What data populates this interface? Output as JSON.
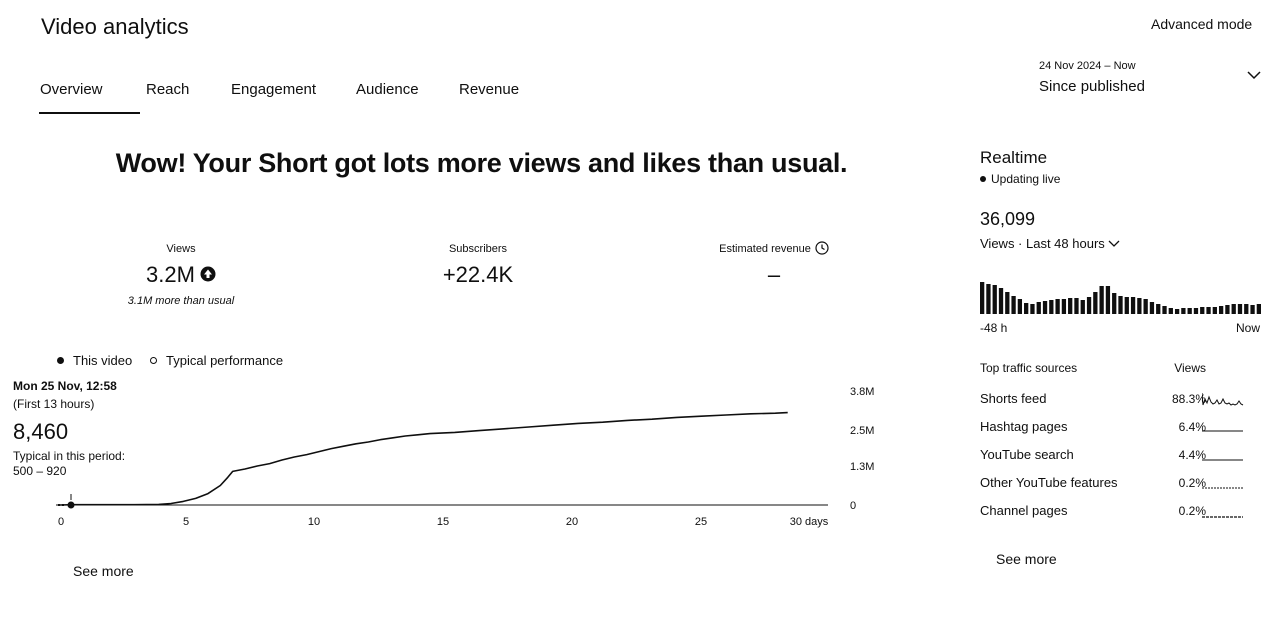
{
  "header": {
    "title": "Video analytics",
    "advanced_mode": "Advanced mode"
  },
  "tabs": [
    {
      "label": "Overview",
      "active": true
    },
    {
      "label": "Reach",
      "active": false
    },
    {
      "label": "Engagement",
      "active": false
    },
    {
      "label": "Audience",
      "active": false
    },
    {
      "label": "Revenue",
      "active": false
    }
  ],
  "date_range": {
    "range": "24 Nov 2024 – Now",
    "period": "Since published"
  },
  "headline": "Wow! Your Short got lots more views and likes than usual.",
  "metrics": {
    "views": {
      "label": "Views",
      "value": "3.2M",
      "sub": "3.1M more than usual"
    },
    "subscribers": {
      "label": "Subscribers",
      "value": "+22.4K"
    },
    "revenue": {
      "label": "Estimated revenue",
      "value": "–"
    }
  },
  "legend": {
    "this_video": "This video",
    "typical": "Typical performance"
  },
  "tooltip": {
    "date": "Mon 25 Nov, 12:58",
    "note": "(First 13 hours)",
    "value": "8,460",
    "typical_label": "Typical in this period:",
    "typical_range": "500 – 920"
  },
  "chart_data": {
    "type": "line",
    "xlabel": "",
    "ylabel": "",
    "x_ticks": [
      "0",
      "5",
      "10",
      "15",
      "20",
      "25",
      "30 days"
    ],
    "y_ticks": [
      "0",
      "1.3M",
      "2.5M",
      "3.8M"
    ],
    "xlim": [
      0,
      30
    ],
    "ylim": [
      0,
      3.8
    ],
    "y_unit": "M",
    "grid": false,
    "series": [
      {
        "name": "This video",
        "x": [
          0,
          0.5,
          1,
          2,
          3,
          4,
          4.5,
          5,
          5.5,
          6,
          6.5,
          6.8,
          7,
          7.5,
          8,
          8.5,
          9,
          9.5,
          10,
          10.5,
          11,
          11.5,
          12,
          12.5,
          13,
          13.5,
          14,
          14.5,
          15,
          16,
          17,
          18,
          19,
          20,
          21,
          22,
          23,
          24,
          25,
          26,
          27,
          28,
          29,
          29.5
        ],
        "y": [
          0,
          0.01,
          0.01,
          0.01,
          0.01,
          0.02,
          0.05,
          0.12,
          0.22,
          0.38,
          0.65,
          0.92,
          1.12,
          1.2,
          1.3,
          1.38,
          1.5,
          1.6,
          1.68,
          1.78,
          1.88,
          1.96,
          2.04,
          2.1,
          2.18,
          2.24,
          2.3,
          2.34,
          2.38,
          2.42,
          2.48,
          2.54,
          2.6,
          2.66,
          2.72,
          2.76,
          2.82,
          2.86,
          2.92,
          2.96,
          3.0,
          3.04,
          3.06,
          3.08
        ]
      }
    ],
    "highlight_point": {
      "x": 0.5,
      "y": 0.00846
    }
  },
  "see_more_left": "See more",
  "realtime": {
    "title": "Realtime",
    "status": "Updating live",
    "count": "36,099",
    "period": "Views · Last 48 hours",
    "axis_start": "-48 h",
    "axis_end": "Now",
    "bars": [
      32,
      30,
      29,
      26,
      22,
      18,
      15,
      11,
      10,
      12,
      13,
      14,
      15,
      15,
      16,
      16,
      14,
      17,
      22,
      28,
      28,
      21,
      18,
      17,
      17,
      16,
      15,
      12,
      10,
      8,
      6,
      5,
      6,
      6,
      6,
      7,
      7,
      7,
      8,
      9,
      10,
      10,
      10,
      9,
      10
    ]
  },
  "traffic": {
    "header_source": "Top traffic sources",
    "header_views": "Views",
    "rows": [
      {
        "name": "Shorts feed",
        "pct": "88.3%"
      },
      {
        "name": "Hashtag pages",
        "pct": "6.4%"
      },
      {
        "name": "YouTube search",
        "pct": "4.4%"
      },
      {
        "name": "Other YouTube features",
        "pct": "0.2%"
      },
      {
        "name": "Channel pages",
        "pct": "0.2%"
      }
    ]
  },
  "see_more_right": "See more"
}
